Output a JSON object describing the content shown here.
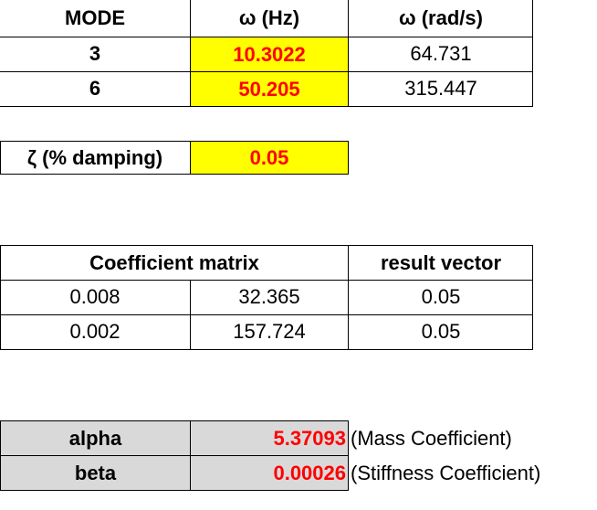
{
  "modes_table": {
    "headers": [
      "MODE",
      "ω (Hz)",
      "ω (rad/s)"
    ],
    "rows": [
      {
        "mode": "3",
        "hz": "10.3022",
        "rad": "64.731"
      },
      {
        "mode": "6",
        "hz": "50.205",
        "rad": "315.447"
      }
    ]
  },
  "damping": {
    "label": "ζ (% damping)",
    "value": "0.05"
  },
  "coefficient_table": {
    "header_matrix": "Coefficient matrix",
    "header_vector": "result vector",
    "rows": [
      {
        "a": "0.008",
        "b": "32.365",
        "r": "0.05"
      },
      {
        "a": "0.002",
        "b": "157.724",
        "r": "0.05"
      }
    ]
  },
  "results": {
    "alpha": {
      "label": "alpha",
      "value": "5.37093",
      "note": "(Mass Coefficient)"
    },
    "beta": {
      "label": "beta",
      "value": "0.00026",
      "note": "(Stiffness Coefficient)"
    }
  },
  "colors": {
    "highlight": "#ffff00",
    "value_red": "#ff0000",
    "label_gray": "#d9d9d9"
  }
}
